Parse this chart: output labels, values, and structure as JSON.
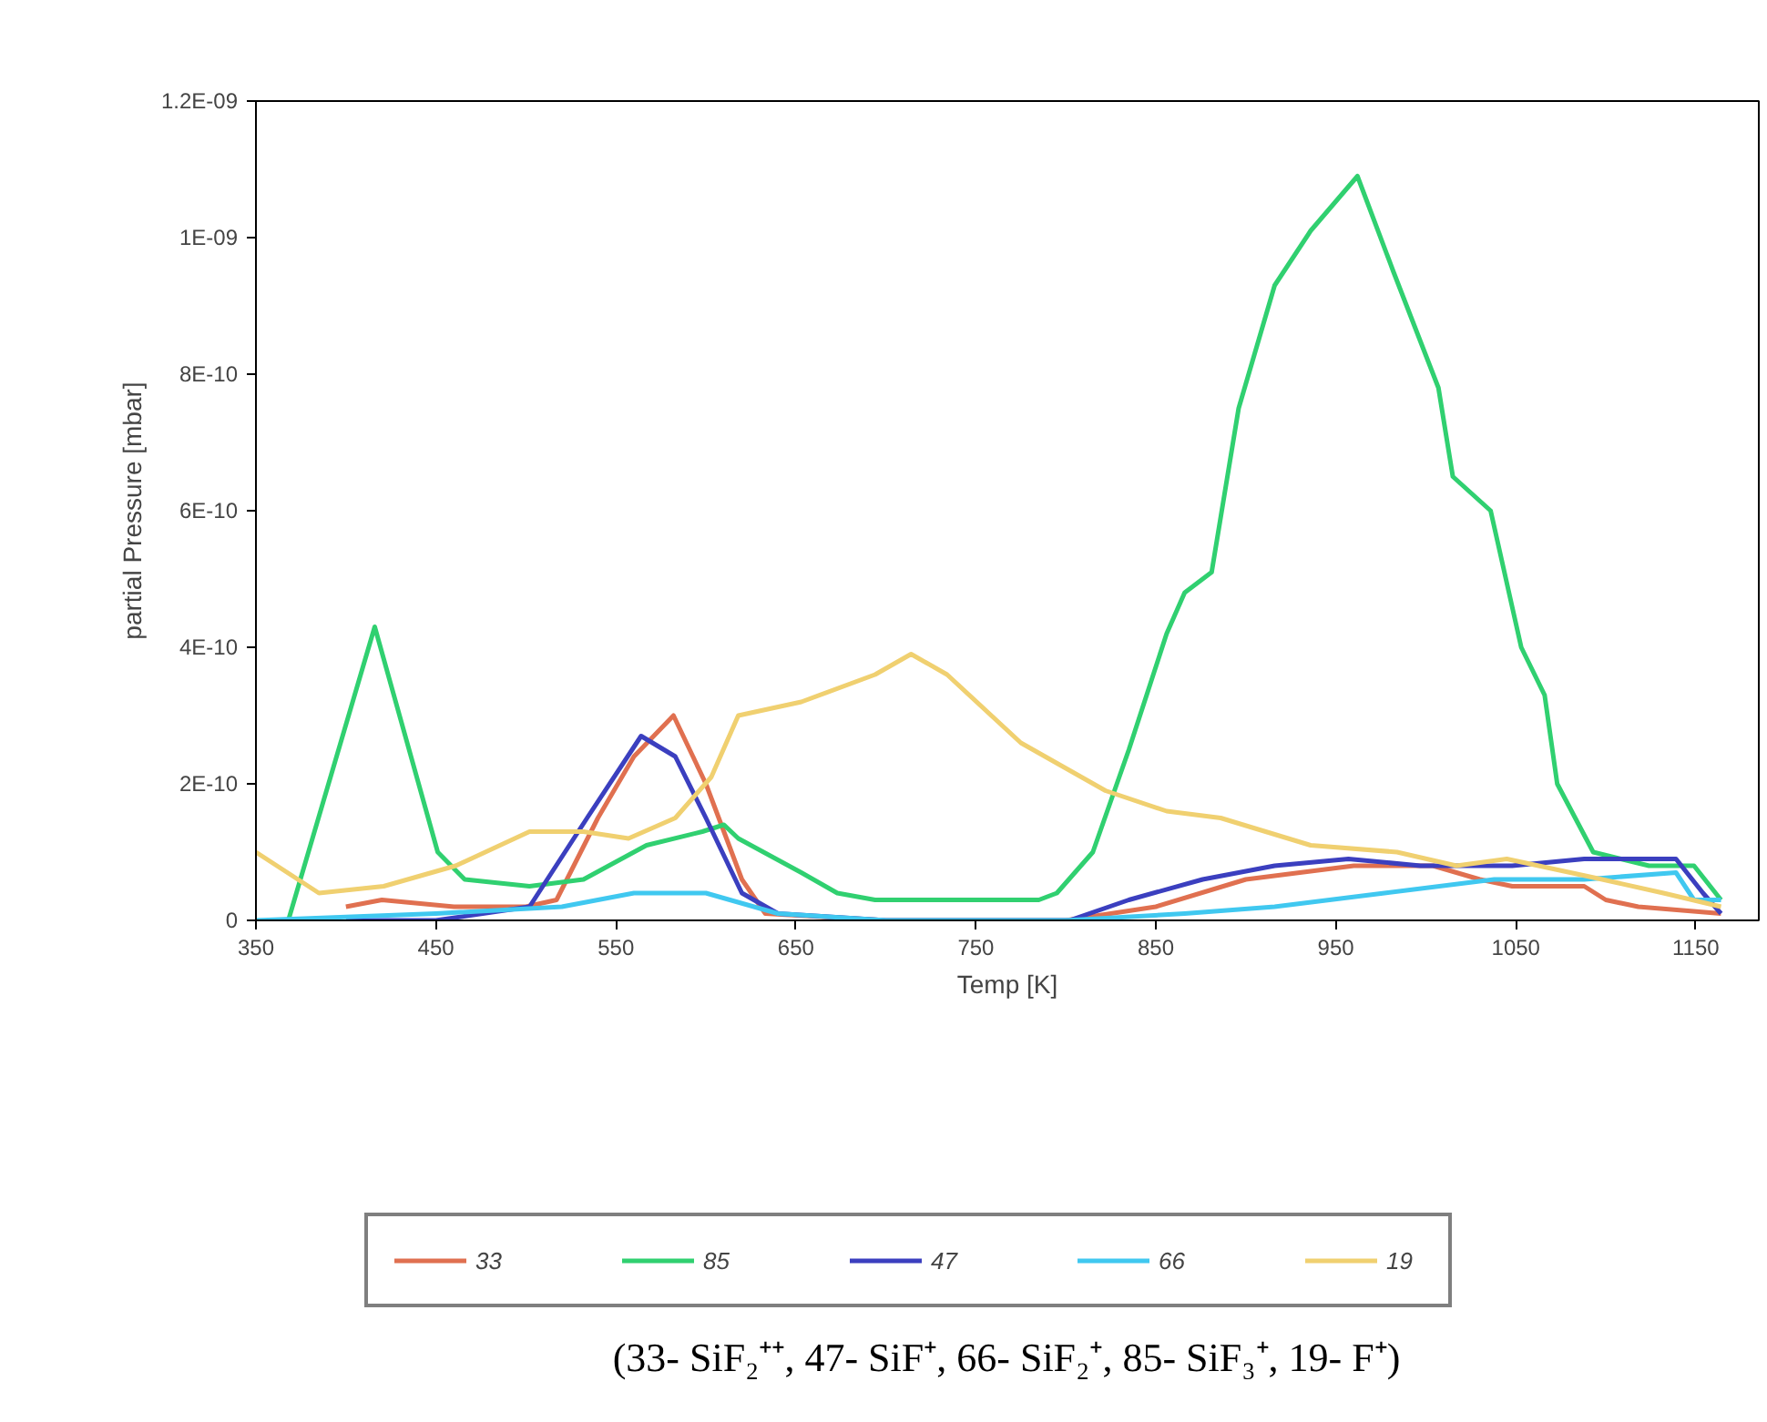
{
  "chart_data": {
    "type": "line",
    "xlabel": "Temp [K]",
    "ylabel": "partial Pressure [mbar]",
    "xlim": [
      350,
      1185
    ],
    "xticks": [
      350,
      450,
      550,
      650,
      750,
      850,
      950,
      1050,
      1150
    ],
    "ylim": [
      0,
      1.2e-09
    ],
    "yticks": [
      {
        "value": 0,
        "label": "0"
      },
      {
        "value": 2e-10,
        "label": "2E-10"
      },
      {
        "value": 4e-10,
        "label": "4E-10"
      },
      {
        "value": 6e-10,
        "label": "6E-10"
      },
      {
        "value": 8e-10,
        "label": "8E-10"
      },
      {
        "value": 1e-09,
        "label": "1E-09"
      },
      {
        "value": 1.2e-09,
        "label": "1.2E-09"
      }
    ],
    "grid": false,
    "legend": "bottom",
    "line_style": "solid",
    "marker": "none",
    "series": [
      {
        "name": "33",
        "color": "#e07050",
        "x": [
          400,
          420,
          460,
          500,
          517,
          540,
          560,
          582,
          600,
          620,
          633,
          700,
          800,
          850,
          900,
          960,
          1004,
          1030,
          1048,
          1088,
          1100,
          1118,
          1164
        ],
        "values": [
          2e-11,
          3e-11,
          2e-11,
          2e-11,
          3e-11,
          1.5e-10,
          2.4e-10,
          3e-10,
          2e-10,
          6e-11,
          1e-11,
          0,
          0,
          2e-11,
          6e-11,
          8e-11,
          8e-11,
          6e-11,
          5e-11,
          5e-11,
          3e-11,
          2e-11,
          1e-11
        ]
      },
      {
        "name": "85",
        "color": "#30d070",
        "x": [
          368,
          416,
          451,
          466,
          502,
          532,
          567,
          598,
          610,
          618,
          653,
          673,
          694,
          785,
          795,
          815,
          835,
          856,
          866,
          881,
          896,
          916,
          936,
          962,
          982,
          1007,
          1015,
          1036,
          1053,
          1066,
          1073,
          1093,
          1124,
          1149,
          1164
        ],
        "values": [
          0,
          4.3e-10,
          1e-10,
          6e-11,
          5e-11,
          6e-11,
          1.1e-10,
          1.3e-10,
          1.4e-10,
          1.2e-10,
          7e-11,
          4e-11,
          3e-11,
          3e-11,
          4e-11,
          1e-10,
          2.5e-10,
          4.2e-10,
          4.8e-10,
          5.1e-10,
          7.5e-10,
          9.3e-10,
          1.01e-09,
          1.09e-09,
          9.5e-10,
          7.8e-10,
          6.5e-10,
          6e-10,
          4e-10,
          3.3e-10,
          2e-10,
          1e-10,
          8e-11,
          8e-11,
          3e-11
        ]
      },
      {
        "name": "47",
        "color": "#3b3fbf",
        "x": [
          400,
          450,
          502,
          534,
          564,
          583,
          600,
          620,
          640,
          700,
          802,
          835,
          876,
          916,
          957,
          997,
          1048,
          1088,
          1139,
          1154,
          1164
        ],
        "values": [
          0,
          0,
          2e-11,
          1.5e-10,
          2.7e-10,
          2.4e-10,
          1.5e-10,
          4e-11,
          1e-11,
          0,
          0,
          3e-11,
          6e-11,
          8e-11,
          9e-11,
          8e-11,
          8e-11,
          9e-11,
          9e-11,
          4e-11,
          1e-11
        ]
      },
      {
        "name": "66",
        "color": "#40c8f0",
        "x": [
          350,
          450,
          520,
          560,
          600,
          640,
          700,
          800,
          866,
          916,
          977,
          1038,
          1088,
          1139,
          1149,
          1164
        ],
        "values": [
          0,
          1e-11,
          2e-11,
          4e-11,
          4e-11,
          1e-11,
          0,
          0,
          1e-11,
          2e-11,
          4e-11,
          6e-11,
          6e-11,
          7e-11,
          3e-11,
          3e-11
        ]
      },
      {
        "name": "19",
        "color": "#f0d070",
        "x": [
          350,
          385,
          421,
          461,
          502,
          532,
          557,
          583,
          603,
          618,
          653,
          694,
          714,
          734,
          775,
          822,
          856,
          886,
          936,
          984,
          1017,
          1045,
          1098,
          1132,
          1164
        ],
        "values": [
          1e-10,
          4e-11,
          5e-11,
          8e-11,
          1.3e-10,
          1.3e-10,
          1.2e-10,
          1.5e-10,
          2.1e-10,
          3e-10,
          3.2e-10,
          3.6e-10,
          3.9e-10,
          3.6e-10,
          2.6e-10,
          1.9e-10,
          1.6e-10,
          1.5e-10,
          1.1e-10,
          1e-10,
          8e-11,
          9e-11,
          6e-11,
          4e-11,
          2e-11
        ]
      }
    ],
    "annotations": [
      "(33- SiF₂⁺⁺, 47- SiF⁺, 66- SiF₂⁺, 85- SiF₃⁺, 19- F⁺)"
    ]
  }
}
